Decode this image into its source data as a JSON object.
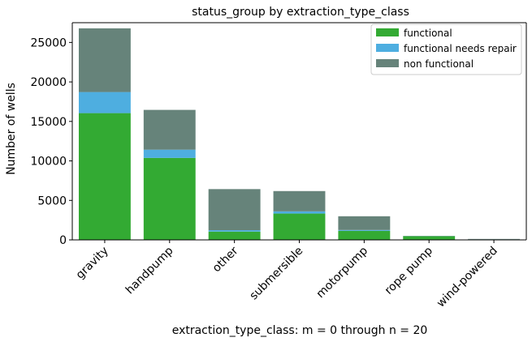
{
  "chart_data": {
    "type": "bar",
    "stacked": true,
    "title": "status_group by extraction_type_class",
    "xlabel": "extraction_type_class: m = 0 through n = 20",
    "ylabel": "Number of wells",
    "categories": [
      "gravity",
      "handpump",
      "other",
      "submersible",
      "motorpump",
      "rope pump",
      "wind-powered"
    ],
    "series": [
      {
        "name": "functional",
        "color": "#33aa33",
        "values": [
          16050,
          10380,
          1050,
          3330,
          1140,
          460,
          60
        ]
      },
      {
        "name": "functional needs repair",
        "color": "#4eaee0",
        "values": [
          2670,
          1040,
          180,
          280,
          110,
          20,
          10
        ]
      },
      {
        "name": "non functional",
        "color": "#66837a",
        "values": [
          8060,
          5040,
          5200,
          2570,
          1740,
          30,
          50
        ]
      }
    ],
    "ylim": [
      0,
      27500
    ],
    "yticks": [
      0,
      5000,
      10000,
      15000,
      20000,
      25000
    ],
    "grid": false,
    "legend": "top-right"
  }
}
